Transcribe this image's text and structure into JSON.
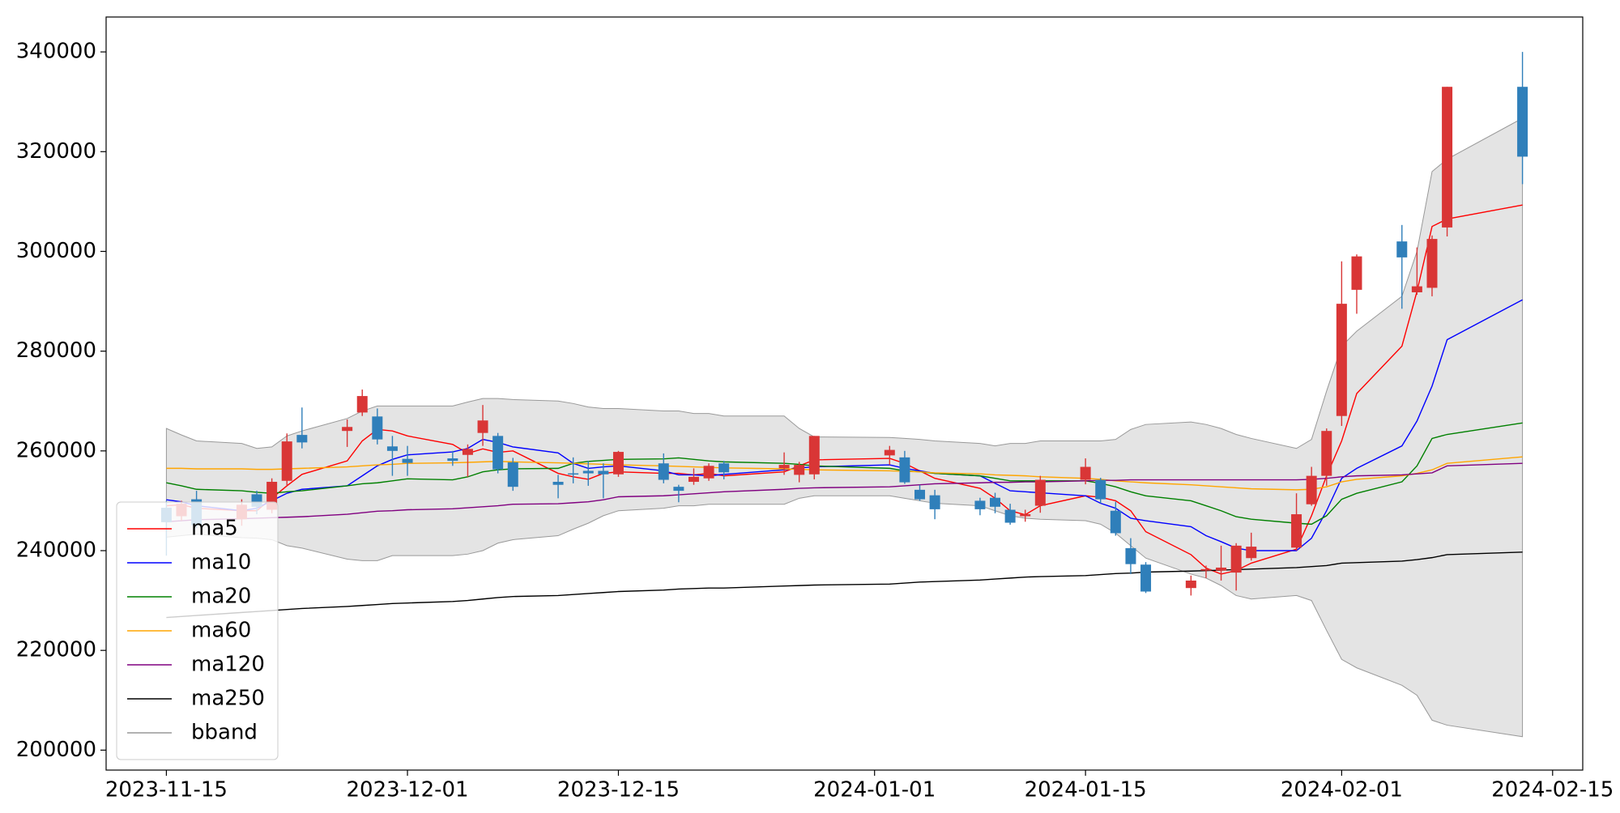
{
  "chart_data": {
    "type": "candlestick",
    "x": [
      "2023-11-15",
      "2023-11-16",
      "2023-11-17",
      "2023-11-20",
      "2023-11-21",
      "2023-11-22",
      "2023-11-23",
      "2023-11-24",
      "2023-11-27",
      "2023-11-28",
      "2023-11-29",
      "2023-11-30",
      "2023-12-01",
      "2023-12-04",
      "2023-12-05",
      "2023-12-06",
      "2023-12-07",
      "2023-12-08",
      "2023-12-11",
      "2023-12-12",
      "2023-12-13",
      "2023-12-14",
      "2023-12-15",
      "2023-12-18",
      "2023-12-19",
      "2023-12-20",
      "2023-12-21",
      "2023-12-22",
      "2023-12-26",
      "2023-12-27",
      "2023-12-28",
      "2024-01-02",
      "2024-01-03",
      "2024-01-04",
      "2024-01-05",
      "2024-01-08",
      "2024-01-09",
      "2024-01-10",
      "2024-01-11",
      "2024-01-12",
      "2024-01-15",
      "2024-01-16",
      "2024-01-17",
      "2024-01-18",
      "2024-01-19",
      "2024-01-22",
      "2024-01-23",
      "2024-01-24",
      "2024-01-25",
      "2024-01-26",
      "2024-01-29",
      "2024-01-30",
      "2024-01-31",
      "2024-02-01",
      "2024-02-02",
      "2024-02-05",
      "2024-02-06",
      "2024-02-07",
      "2024-02-08",
      "2024-02-13"
    ],
    "open": [
      248600,
      246900,
      250300,
      246300,
      251300,
      248200,
      254000,
      263200,
      264000,
      267700,
      266900,
      260900,
      258400,
      258500,
      259200,
      263600,
      263000,
      257700,
      253800,
      255500,
      256000,
      256000,
      255300,
      257500,
      252800,
      253800,
      254500,
      257500,
      256500,
      255200,
      255300,
      259100,
      258700,
      252200,
      251100,
      250000,
      250600,
      248200,
      246900,
      249000,
      254200,
      254200,
      248000,
      240500,
      237200,
      232500,
      236000,
      236000,
      235600,
      238500,
      240600,
      249300,
      255000,
      267000,
      292300,
      302000,
      291800,
      292700,
      304800,
      333000
    ],
    "high": [
      250000,
      250000,
      252000,
      250300,
      252000,
      254500,
      263500,
      268700,
      266300,
      272300,
      268500,
      263000,
      261000,
      260000,
      261300,
      269200,
      263600,
      258600,
      255200,
      258700,
      258000,
      257500,
      260000,
      259500,
      253200,
      256500,
      257500,
      258000,
      259700,
      257800,
      263000,
      261000,
      260000,
      253200,
      252200,
      250600,
      251600,
      249400,
      248200,
      255000,
      258500,
      254600,
      249800,
      242500,
      237700,
      235000,
      237000,
      241000,
      241500,
      243600,
      251500,
      256800,
      264500,
      298000,
      299400,
      305300,
      300800,
      303200,
      333000,
      340000
    ],
    "low": [
      239000,
      246000,
      244500,
      245000,
      247300,
      247500,
      253000,
      260500,
      260800,
      267000,
      261300,
      255000,
      255000,
      257000,
      254800,
      261000,
      255500,
      252000,
      250500,
      253500,
      253000,
      250500,
      254800,
      253500,
      249700,
      253200,
      254000,
      254300,
      255200,
      253700,
      254300,
      257200,
      253400,
      250000,
      246300,
      247100,
      247500,
      245200,
      245800,
      247600,
      253300,
      249500,
      243000,
      235300,
      231500,
      231000,
      234500,
      234000,
      232000,
      238000,
      240000,
      249000,
      253000,
      265000,
      287500,
      288500,
      291300,
      291000,
      303000,
      313500
    ],
    "close": [
      245700,
      249400,
      245100,
      249200,
      248800,
      253800,
      261900,
      261700,
      264800,
      271000,
      262300,
      260000,
      257600,
      258000,
      260400,
      266100,
      256300,
      252800,
      253200,
      255300,
      255500,
      255300,
      259800,
      254200,
      252000,
      254800,
      257000,
      255700,
      257200,
      257200,
      263000,
      260200,
      253700,
      250300,
      248300,
      248300,
      248800,
      245600,
      247300,
      254200,
      256800,
      250300,
      243500,
      237300,
      231800,
      234000,
      236300,
      236600,
      241000,
      240800,
      247300,
      255000,
      264000,
      289500,
      299000,
      298800,
      293000,
      302500,
      333000,
      319000
    ],
    "up_color": "#d93636",
    "down_color": "#2f7fba",
    "series": [
      {
        "name": "ma5",
        "color": "#ff0000",
        "values": [
          249000,
          249200,
          248500,
          248000,
          248000,
          250500,
          253000,
          255300,
          258000,
          262000,
          264300,
          264000,
          263000,
          261300,
          259500,
          260400,
          259700,
          260000,
          255500,
          254800,
          254300,
          255500,
          255800,
          255500,
          255500,
          255200,
          255500,
          255000,
          255800,
          257000,
          258200,
          258500,
          257500,
          256000,
          254500,
          252500,
          250500,
          248000,
          247200,
          249000,
          251000,
          250700,
          250000,
          248000,
          243800,
          239200,
          236500,
          235300,
          236000,
          237500,
          240300,
          247000,
          255000,
          262000,
          271500,
          281000,
          292000,
          305000,
          306500,
          309300
        ]
      },
      {
        "name": "ma10",
        "color": "#0000ff",
        "values": [
          250200,
          249800,
          249000,
          248000,
          248500,
          250000,
          251500,
          252300,
          253000,
          255000,
          257000,
          258300,
          259200,
          259800,
          260500,
          262300,
          261700,
          260800,
          259600,
          257500,
          256500,
          256800,
          257000,
          256000,
          255200,
          255200,
          255000,
          255300,
          256200,
          256600,
          256800,
          257200,
          256500,
          256000,
          255500,
          255000,
          253500,
          252000,
          251800,
          251600,
          251000,
          249500,
          248500,
          246500,
          246000,
          244800,
          243000,
          241800,
          240500,
          240000,
          240000,
          242500,
          248000,
          254500,
          256500,
          261000,
          266000,
          273000,
          282300,
          290300
        ]
      },
      {
        "name": "ma20",
        "color": "#008000",
        "values": [
          253600,
          253000,
          252300,
          252000,
          251700,
          251500,
          251800,
          252000,
          253000,
          253400,
          253600,
          254000,
          254400,
          254200,
          254800,
          255800,
          256200,
          256400,
          256500,
          257500,
          257900,
          258100,
          258300,
          258400,
          258600,
          258300,
          258000,
          257800,
          257500,
          257300,
          257000,
          256500,
          256000,
          255800,
          255500,
          255000,
          254500,
          254000,
          254000,
          254000,
          254000,
          253500,
          252800,
          251800,
          251000,
          250000,
          249000,
          248000,
          246800,
          246300,
          245500,
          245300,
          247000,
          250300,
          251500,
          253800,
          257000,
          262500,
          263300,
          265600
        ]
      },
      {
        "name": "ma60",
        "color": "#ffa500",
        "values": [
          256500,
          256500,
          256400,
          256400,
          256300,
          256300,
          256400,
          256500,
          256800,
          257000,
          257200,
          257300,
          257500,
          257600,
          257700,
          257800,
          257900,
          257800,
          257600,
          257500,
          257400,
          257300,
          257200,
          257000,
          256900,
          256800,
          256700,
          256600,
          256400,
          256300,
          256200,
          256000,
          255900,
          255800,
          255600,
          255400,
          255200,
          255100,
          255000,
          254800,
          254500,
          254300,
          254000,
          253800,
          253600,
          253200,
          253000,
          252800,
          252600,
          252400,
          252200,
          252300,
          252800,
          253800,
          254300,
          255000,
          255500,
          256200,
          257500,
          258800
        ]
      },
      {
        "name": "ma120",
        "color": "#800080",
        "values": [
          245800,
          246000,
          246200,
          246400,
          246500,
          246600,
          246700,
          246800,
          247300,
          247600,
          247900,
          248000,
          248200,
          248400,
          248600,
          248800,
          249000,
          249300,
          249400,
          249600,
          249800,
          250200,
          250800,
          251000,
          251200,
          251400,
          251600,
          251800,
          252300,
          252500,
          252600,
          252800,
          253000,
          253200,
          253400,
          253600,
          253700,
          253700,
          253800,
          253800,
          254000,
          254100,
          254100,
          254200,
          254200,
          254200,
          254200,
          254200,
          254200,
          254200,
          254200,
          254300,
          254500,
          254800,
          255000,
          255200,
          255400,
          255600,
          257000,
          257500
        ]
      },
      {
        "name": "ma250",
        "color": "#000000",
        "values": [
          226600,
          226800,
          227000,
          227600,
          227800,
          228000,
          228200,
          228400,
          228800,
          229000,
          229200,
          229400,
          229500,
          229800,
          230000,
          230300,
          230600,
          230800,
          231000,
          231200,
          231400,
          231600,
          231800,
          232100,
          232300,
          232400,
          232500,
          232500,
          232900,
          233000,
          233100,
          233300,
          233500,
          233700,
          233800,
          234100,
          234300,
          234500,
          234700,
          234800,
          235000,
          235200,
          235400,
          235500,
          235700,
          235900,
          236000,
          236100,
          236200,
          236300,
          236600,
          236800,
          237000,
          237500,
          237600,
          237900,
          238200,
          238600,
          239200,
          239700
        ]
      }
    ],
    "band": {
      "name": "bband",
      "color": "#999999",
      "fill": "#e4e4e4",
      "upper": [
        264500,
        263200,
        262000,
        261500,
        260500,
        260800,
        263000,
        264000,
        266500,
        268000,
        269000,
        269000,
        269000,
        269000,
        269800,
        270500,
        270500,
        270300,
        270000,
        269500,
        268800,
        268500,
        268500,
        268000,
        268000,
        267500,
        267500,
        267000,
        267000,
        264500,
        262800,
        262700,
        262500,
        262300,
        262000,
        261500,
        261000,
        261500,
        261500,
        262000,
        262000,
        262000,
        262300,
        264300,
        265300,
        265800,
        265300,
        264500,
        263300,
        262500,
        260500,
        262300,
        272000,
        281000,
        284000,
        291000,
        300000,
        316000,
        318500,
        326700
      ],
      "lower": [
        242700,
        243000,
        243300,
        242600,
        242500,
        242200,
        241000,
        240500,
        238300,
        238000,
        238000,
        239000,
        239000,
        239000,
        239300,
        240000,
        241500,
        242200,
        243000,
        244300,
        245500,
        247000,
        248000,
        248500,
        249000,
        249000,
        249300,
        249300,
        249300,
        250500,
        251000,
        251000,
        250500,
        250000,
        249500,
        249000,
        248000,
        247000,
        246500,
        246300,
        246000,
        245300,
        243500,
        241000,
        238500,
        235300,
        234500,
        233000,
        231000,
        230300,
        231000,
        230000,
        224000,
        218200,
        216500,
        213000,
        211000,
        206000,
        205000,
        202700
      ]
    },
    "xlim": [
      "2023-11-11",
      "2024-02-17"
    ],
    "xticks": [
      "2023-11-15",
      "2023-12-01",
      "2023-12-15",
      "2024-01-01",
      "2024-01-15",
      "2024-02-01",
      "2024-02-15"
    ],
    "ylim": [
      196000,
      347000
    ],
    "yticks": [
      200000,
      220000,
      240000,
      260000,
      280000,
      300000,
      320000,
      340000
    ],
    "grid": false,
    "legend": "lower left"
  }
}
